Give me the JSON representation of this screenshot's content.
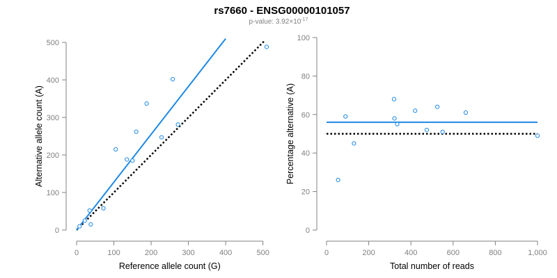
{
  "title": "rs7660 - ENSG00000101057",
  "subtitle": {
    "prefix": "p-value: 3.92×10",
    "exponent": "-17"
  },
  "colors": {
    "accent": "#1e88e5",
    "axis": "#808080",
    "reference_line": "#000000",
    "text": "#000000"
  },
  "chart_data": [
    {
      "type": "scatter",
      "xlabel": "Reference allele count (G)",
      "ylabel": "Alternative allele count (A)",
      "xlim": [
        0,
        510
      ],
      "ylim": [
        0,
        500
      ],
      "xticks": [
        0,
        100,
        200,
        300,
        400,
        500
      ],
      "yticks": [
        0,
        100,
        200,
        300,
        400,
        500
      ],
      "xtick_labels": [
        "0",
        "100",
        "200",
        "300",
        "400",
        "500"
      ],
      "ytick_labels": [
        "0",
        "100",
        "200",
        "300",
        "400",
        "500"
      ],
      "grid": false,
      "points": [
        {
          "x": 8,
          "y": 10
        },
        {
          "x": 22,
          "y": 25
        },
        {
          "x": 35,
          "y": 52
        },
        {
          "x": 38,
          "y": 15
        },
        {
          "x": 72,
          "y": 58
        },
        {
          "x": 105,
          "y": 215
        },
        {
          "x": 135,
          "y": 188
        },
        {
          "x": 150,
          "y": 185
        },
        {
          "x": 160,
          "y": 262
        },
        {
          "x": 188,
          "y": 337
        },
        {
          "x": 228,
          "y": 247
        },
        {
          "x": 258,
          "y": 402
        },
        {
          "x": 272,
          "y": 281
        },
        {
          "x": 510,
          "y": 488
        }
      ],
      "fit_line": {
        "x": [
          0,
          400
        ],
        "y": [
          0,
          510
        ]
      },
      "reference_line": {
        "x": [
          0,
          505
        ],
        "y": [
          0,
          505
        ]
      }
    },
    {
      "type": "scatter",
      "xlabel": "Total number of reads",
      "ylabel": "Percentage alternative (A)",
      "xlim": [
        0,
        1000
      ],
      "ylim": [
        0,
        100
      ],
      "xticks": [
        0,
        200,
        400,
        600,
        800,
        1000
      ],
      "yticks": [
        0,
        20,
        40,
        60,
        80,
        100
      ],
      "xtick_labels": [
        "0",
        "200",
        "400",
        "600",
        "800",
        "1,000"
      ],
      "ytick_labels": [
        "0",
        "20",
        "40",
        "60",
        "80",
        "100"
      ],
      "grid": false,
      "points": [
        {
          "x": 55,
          "y": 26
        },
        {
          "x": 90,
          "y": 59
        },
        {
          "x": 130,
          "y": 45
        },
        {
          "x": 320,
          "y": 68
        },
        {
          "x": 322,
          "y": 58
        },
        {
          "x": 335,
          "y": 55
        },
        {
          "x": 420,
          "y": 62
        },
        {
          "x": 475,
          "y": 52
        },
        {
          "x": 525,
          "y": 64
        },
        {
          "x": 550,
          "y": 51
        },
        {
          "x": 660,
          "y": 61
        },
        {
          "x": 1000,
          "y": 49
        }
      ],
      "fit_line": {
        "x": [
          0,
          1000
        ],
        "y": [
          56,
          56
        ]
      },
      "reference_line": {
        "x": [
          0,
          1000
        ],
        "y": [
          50,
          50
        ]
      }
    }
  ]
}
